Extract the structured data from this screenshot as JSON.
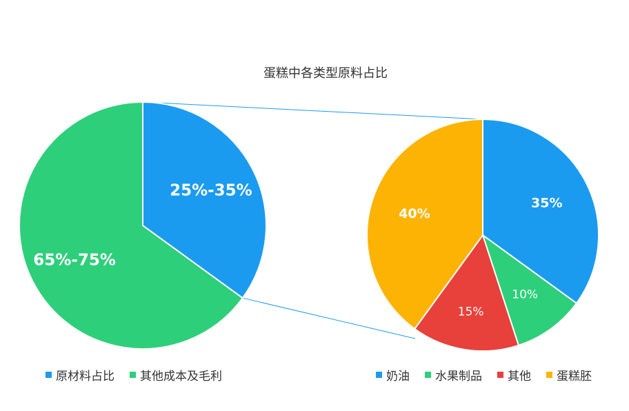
{
  "chart_data": {
    "type": "pie",
    "title": "蛋糕中各类型原料占比",
    "pies": [
      {
        "slices": [
          {
            "label": "原材料占比",
            "value": 35,
            "value_label": "25%-35%",
            "color": "#1a9bf0"
          },
          {
            "label": "其他成本及毛利",
            "value": 65,
            "value_label": "65%-75%",
            "color": "#2ecf7a"
          }
        ]
      },
      {
        "slices": [
          {
            "label": "奶油",
            "value": 35,
            "value_label": "35%",
            "color": "#1a9bf0"
          },
          {
            "label": "水果制品",
            "value": 10,
            "value_label": "10%",
            "color": "#2ecf7a"
          },
          {
            "label": "其他",
            "value": 15,
            "value_label": "15%",
            "color": "#e8403a"
          },
          {
            "label": "蛋糕胚",
            "value": 40,
            "value_label": "40%",
            "color": "#fdb304"
          }
        ]
      }
    ],
    "connector_color": "#1a9bf0"
  }
}
